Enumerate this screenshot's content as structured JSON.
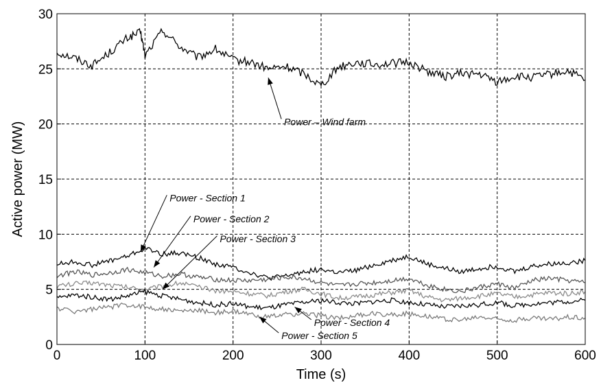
{
  "chart_data": {
    "type": "line",
    "title": "",
    "xlabel": "Time (s)",
    "ylabel": "Active power (MW)",
    "xlim": [
      0,
      600
    ],
    "ylim": [
      0,
      30
    ],
    "xticks": [
      0,
      100,
      200,
      300,
      400,
      500,
      600
    ],
    "yticks": [
      0,
      5,
      10,
      15,
      20,
      25,
      30
    ],
    "grid": true,
    "legend": "none",
    "series": [
      {
        "name": "Power – Wind farm",
        "color": "#000000",
        "x": [
          0,
          20,
          40,
          60,
          80,
          95,
          100,
          120,
          140,
          160,
          180,
          200,
          220,
          240,
          260,
          280,
          300,
          320,
          340,
          360,
          380,
          400,
          420,
          440,
          460,
          480,
          500,
          520,
          540,
          560,
          580,
          600
        ],
        "values": [
          26.5,
          26.0,
          25.3,
          26.5,
          27.8,
          28.3,
          26.2,
          28.5,
          27.0,
          26.0,
          26.8,
          25.8,
          25.6,
          25.0,
          25.2,
          24.6,
          23.5,
          25.2,
          25.6,
          25.4,
          25.5,
          25.6,
          24.8,
          24.3,
          24.6,
          24.5,
          23.8,
          24.3,
          24.2,
          24.5,
          24.8,
          24.0
        ]
      },
      {
        "name": "Power - Section 1",
        "color": "#000000",
        "x": [
          0,
          20,
          40,
          60,
          80,
          100,
          120,
          140,
          160,
          180,
          200,
          220,
          240,
          260,
          280,
          300,
          320,
          340,
          360,
          380,
          400,
          420,
          440,
          460,
          480,
          500,
          520,
          540,
          560,
          580,
          600
        ],
        "values": [
          7.3,
          7.5,
          7.2,
          7.6,
          8.0,
          8.7,
          8.2,
          8.3,
          7.9,
          7.3,
          7.0,
          6.5,
          6.0,
          6.2,
          6.6,
          6.8,
          6.5,
          6.7,
          7.2,
          7.6,
          8.0,
          7.3,
          6.9,
          6.6,
          6.9,
          7.1,
          6.6,
          7.1,
          7.3,
          7.4,
          7.6
        ]
      },
      {
        "name": "Power - Section 2",
        "color": "#555555",
        "x": [
          0,
          20,
          40,
          60,
          80,
          100,
          120,
          140,
          160,
          180,
          200,
          220,
          240,
          260,
          280,
          300,
          320,
          340,
          360,
          380,
          400,
          420,
          440,
          460,
          480,
          500,
          520,
          540,
          560,
          580,
          600
        ],
        "values": [
          6.2,
          6.6,
          6.3,
          6.5,
          6.8,
          6.5,
          6.2,
          6.4,
          6.1,
          5.9,
          5.8,
          5.8,
          5.9,
          6.1,
          6.0,
          5.6,
          5.3,
          5.5,
          5.6,
          5.8,
          6.0,
          5.4,
          5.0,
          4.8,
          5.2,
          5.5,
          5.1,
          5.8,
          6.0,
          5.8,
          5.6
        ]
      },
      {
        "name": "Power - Section 3",
        "color": "#8a8a8a",
        "x": [
          0,
          20,
          40,
          60,
          80,
          100,
          120,
          140,
          160,
          180,
          200,
          220,
          240,
          260,
          280,
          300,
          320,
          340,
          360,
          380,
          400,
          420,
          440,
          460,
          480,
          500,
          520,
          540,
          560,
          580,
          600
        ],
        "values": [
          5.3,
          5.5,
          5.6,
          5.4,
          5.2,
          5.0,
          5.3,
          5.6,
          5.2,
          4.9,
          4.8,
          4.6,
          4.4,
          4.8,
          5.0,
          4.6,
          4.2,
          4.3,
          4.5,
          4.7,
          4.9,
          4.3,
          4.0,
          4.2,
          4.4,
          4.6,
          4.3,
          4.5,
          4.7,
          4.6,
          4.8
        ]
      },
      {
        "name": "Power - Section 4",
        "color": "#000000",
        "x": [
          0,
          20,
          40,
          60,
          80,
          100,
          120,
          140,
          160,
          180,
          200,
          220,
          240,
          260,
          280,
          300,
          320,
          340,
          360,
          380,
          400,
          420,
          440,
          460,
          480,
          500,
          520,
          540,
          560,
          580,
          600
        ],
        "values": [
          4.2,
          4.5,
          4.3,
          4.1,
          4.4,
          4.8,
          4.4,
          4.1,
          3.8,
          3.6,
          3.7,
          3.4,
          3.3,
          3.6,
          3.8,
          4.0,
          3.8,
          3.7,
          3.9,
          4.0,
          3.8,
          3.6,
          3.4,
          3.5,
          3.6,
          3.8,
          3.5,
          3.7,
          3.8,
          3.9,
          4.0
        ]
      },
      {
        "name": "Power - Section 5",
        "color": "#7a7a7a",
        "x": [
          0,
          20,
          40,
          60,
          80,
          100,
          120,
          140,
          160,
          180,
          200,
          220,
          240,
          260,
          280,
          300,
          320,
          340,
          360,
          380,
          400,
          420,
          440,
          460,
          480,
          500,
          520,
          540,
          560,
          580,
          600
        ],
        "values": [
          3.3,
          3.0,
          3.2,
          3.4,
          3.6,
          3.4,
          3.2,
          3.0,
          3.1,
          2.9,
          3.0,
          2.7,
          2.5,
          2.7,
          2.8,
          2.6,
          2.4,
          2.6,
          2.8,
          2.7,
          2.8,
          2.6,
          2.3,
          2.2,
          2.5,
          2.3,
          2.2,
          2.4,
          2.3,
          2.5,
          2.4
        ]
      }
    ],
    "annotations": [
      {
        "text": "Power – Wind farm",
        "target": [
          240,
          24.2
        ],
        "label_at": [
          258,
          20.2
        ]
      },
      {
        "text": "Power - Section 1",
        "target": [
          95,
          8.4
        ],
        "label_at": [
          128,
          13.3
        ]
      },
      {
        "text": "Power - Section 2",
        "target": [
          110,
          7.0
        ],
        "label_at": [
          155,
          11.4
        ]
      },
      {
        "text": "Power - Section 3",
        "target": [
          120,
          5.0
        ],
        "label_at": [
          185,
          9.6
        ]
      },
      {
        "text": "Power - Section 4",
        "target": [
          270,
          3.4
        ],
        "label_at": [
          292,
          2.0
        ]
      },
      {
        "text": "Power - Section 5",
        "target": [
          230,
          2.5
        ],
        "label_at": [
          255,
          0.8
        ]
      }
    ]
  }
}
